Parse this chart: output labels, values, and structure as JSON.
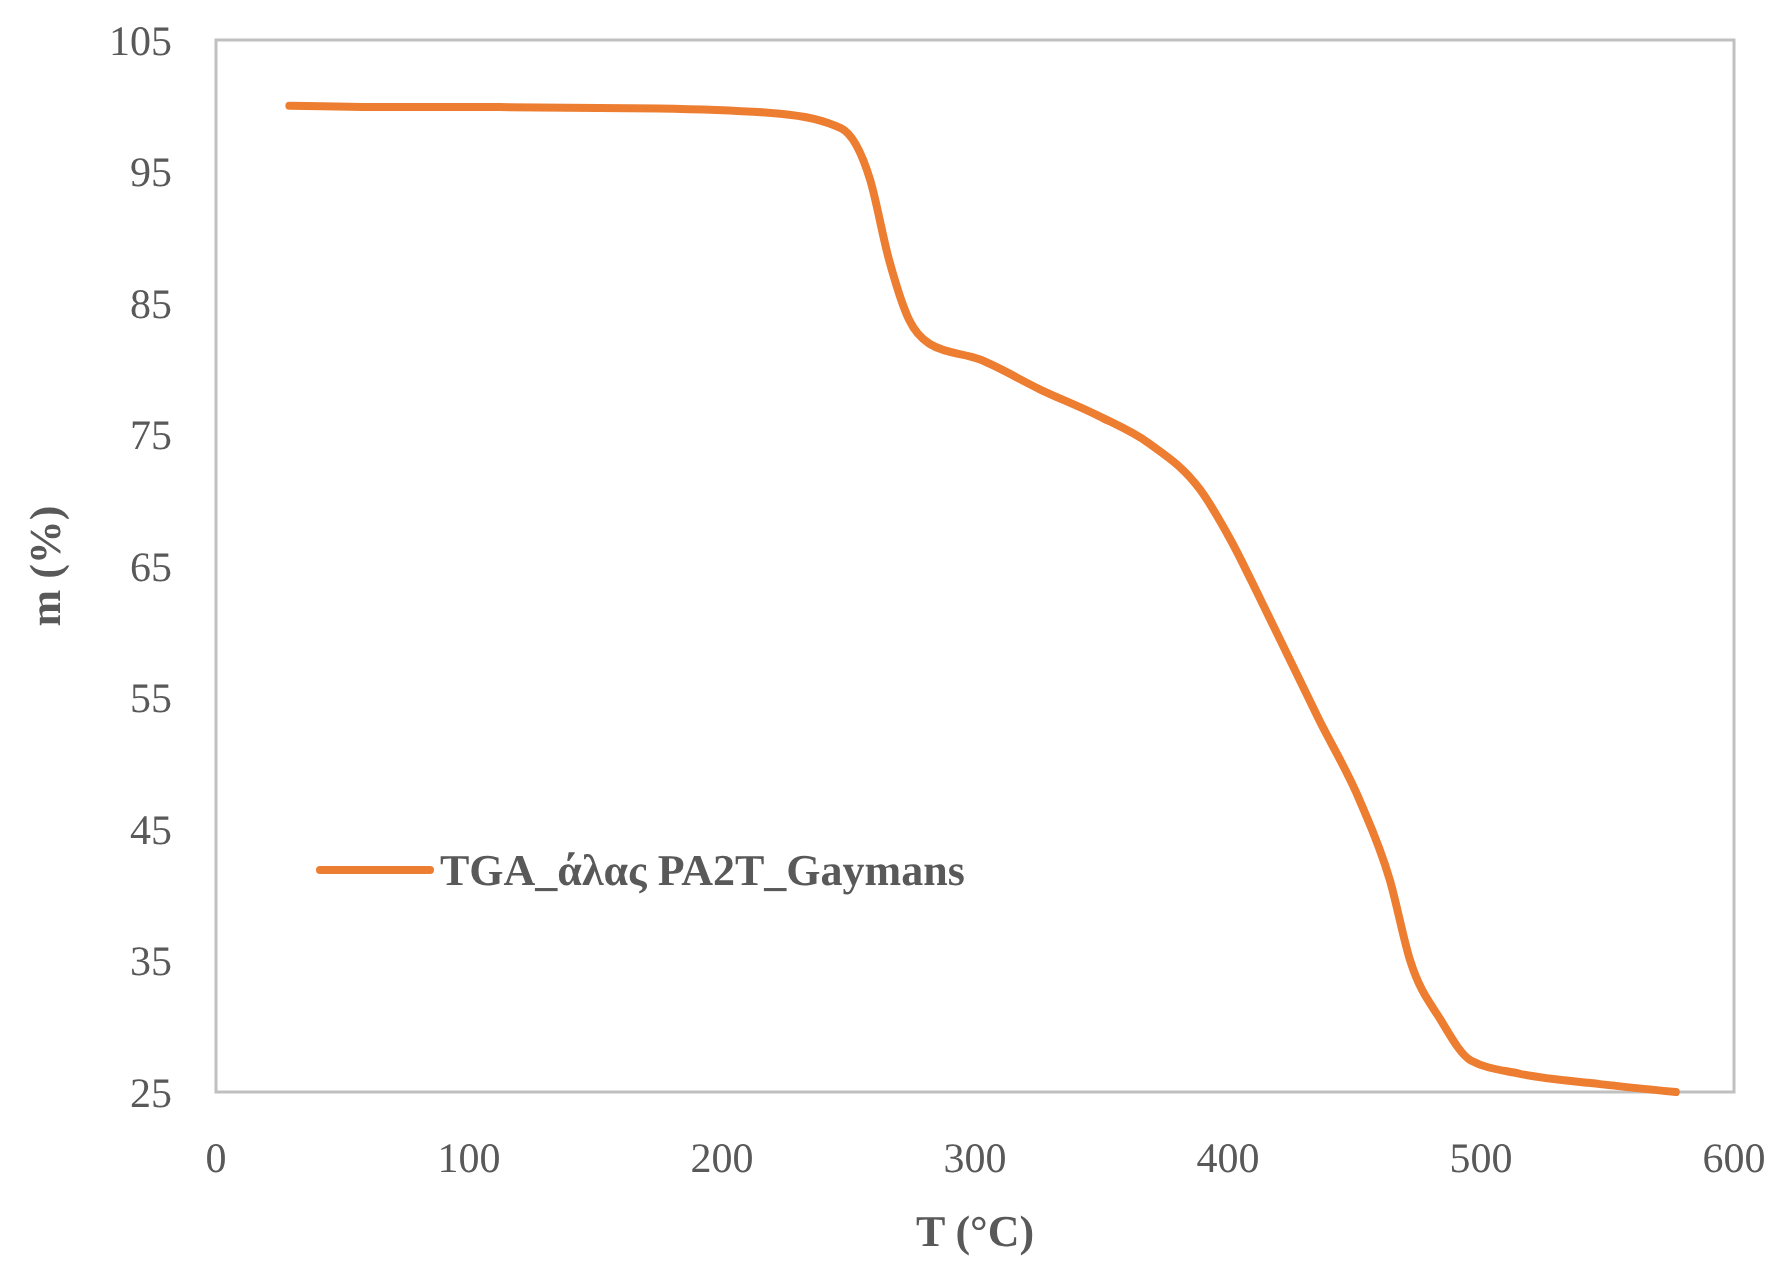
{
  "chart_data": {
    "type": "line",
    "xlabel": "T (°C)",
    "ylabel": "m (%)",
    "xlim": [
      0,
      600
    ],
    "xticks": [
      0,
      100,
      200,
      300,
      400,
      500,
      600
    ],
    "ylim": [
      25,
      105
    ],
    "yticks": [
      25,
      35,
      45,
      55,
      65,
      75,
      85,
      95,
      105
    ],
    "grid": false,
    "legend": "left",
    "marker": "none",
    "line_style": "solid",
    "series": [
      {
        "name": "TGA_άλας PA2T_Gaymans",
        "color": "#ed7d31",
        "x": [
          29,
          70,
          112,
          175,
          223,
          247,
          258.5,
          266,
          274,
          282,
          302,
          326,
          349,
          369,
          389,
          401,
          413,
          436,
          452,
          464,
          472,
          484,
          496,
          515,
          547,
          577
        ],
        "values": [
          100,
          99.9,
          99.9,
          99.8,
          99.4,
          98.3,
          94.4,
          88.3,
          83.7,
          81.9,
          80.7,
          78.4,
          76.4,
          74.3,
          70.8,
          67,
          62.4,
          53.3,
          47.2,
          41.1,
          35,
          30.5,
          27.4,
          26.4,
          25.6,
          25
        ]
      }
    ]
  }
}
